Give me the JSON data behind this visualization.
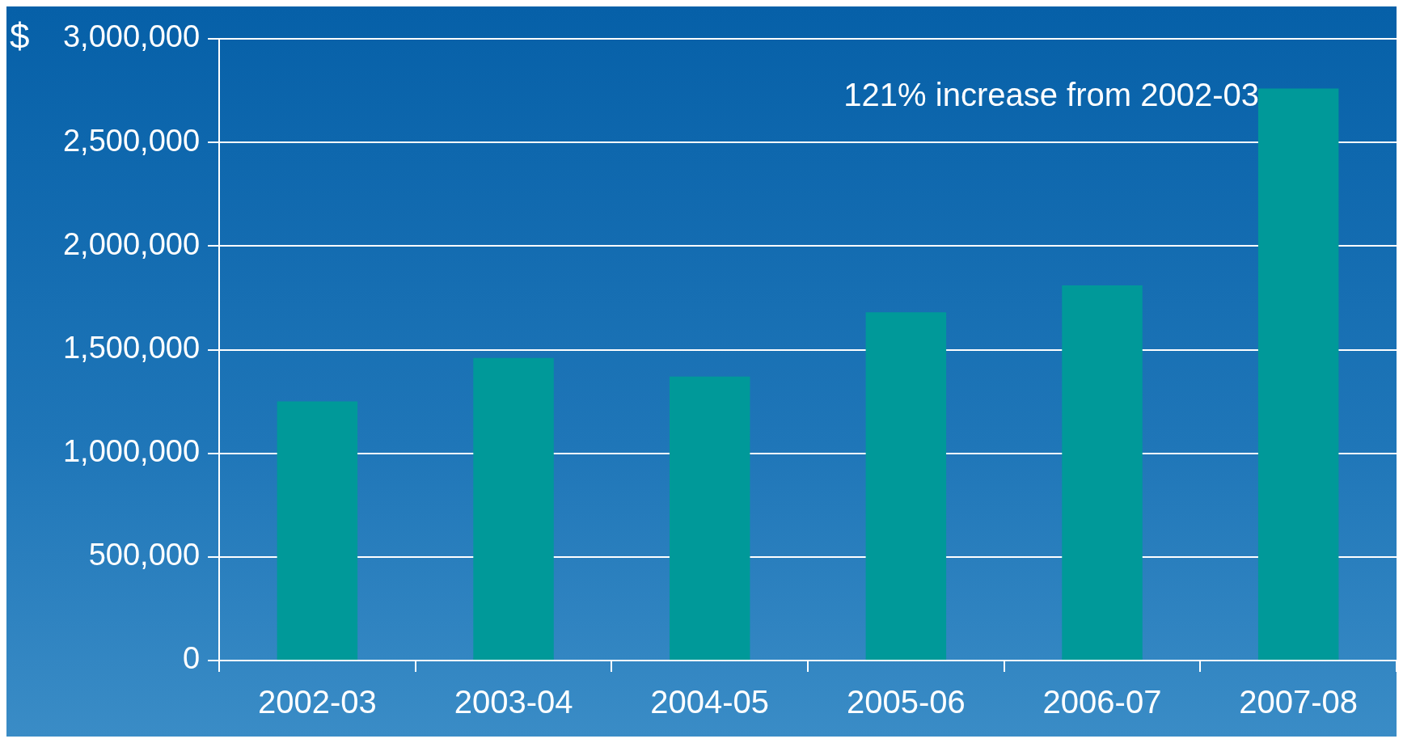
{
  "chart_data": {
    "type": "bar",
    "ylabel": "$",
    "annotations": [
      "121% increase from 2002-03"
    ],
    "categories": [
      "2002-03",
      "2003-04",
      "2004-05",
      "2005-06",
      "2006-07",
      "2007-08"
    ],
    "values": [
      1250000,
      1460000,
      1370000,
      1680000,
      1810000,
      2760000
    ],
    "color": "#009999",
    "ylim": [
      0,
      3000000
    ],
    "yticks": [
      0,
      {
        "value": 500000,
        "label": "500,000"
      },
      {
        "value": 1000000,
        "label": "1,000,000"
      },
      {
        "value": 1500000,
        "label": "1,500,000"
      },
      {
        "value": 2000000,
        "label": "2,000,000"
      },
      {
        "value": 2500000,
        "label": "2,500,000"
      },
      {
        "value": 3000000,
        "label": "3,000,000"
      }
    ],
    "grid": "y"
  }
}
